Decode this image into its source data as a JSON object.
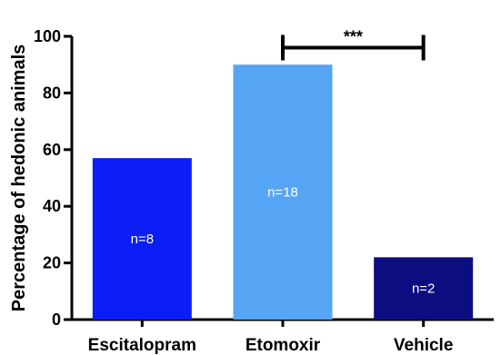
{
  "chart_data": {
    "type": "bar",
    "title": "",
    "xlabel": "",
    "ylabel": "Percentage of hedonic animals",
    "ylim": [
      0,
      100
    ],
    "yticks": [
      0,
      20,
      40,
      60,
      80,
      100
    ],
    "grid": false,
    "categories": [
      "Escitalopram",
      "Etomoxir",
      "Vehicle"
    ],
    "values": [
      57,
      90,
      22
    ],
    "bar_labels": [
      "n=8",
      "n=18",
      "n=2"
    ],
    "colors": [
      "#0a1ef5",
      "#56a5f5",
      "#0c0e80"
    ],
    "annotations": [
      {
        "from": "Etomoxir",
        "to": "Vehicle",
        "y": 96,
        "text": "***"
      }
    ]
  }
}
